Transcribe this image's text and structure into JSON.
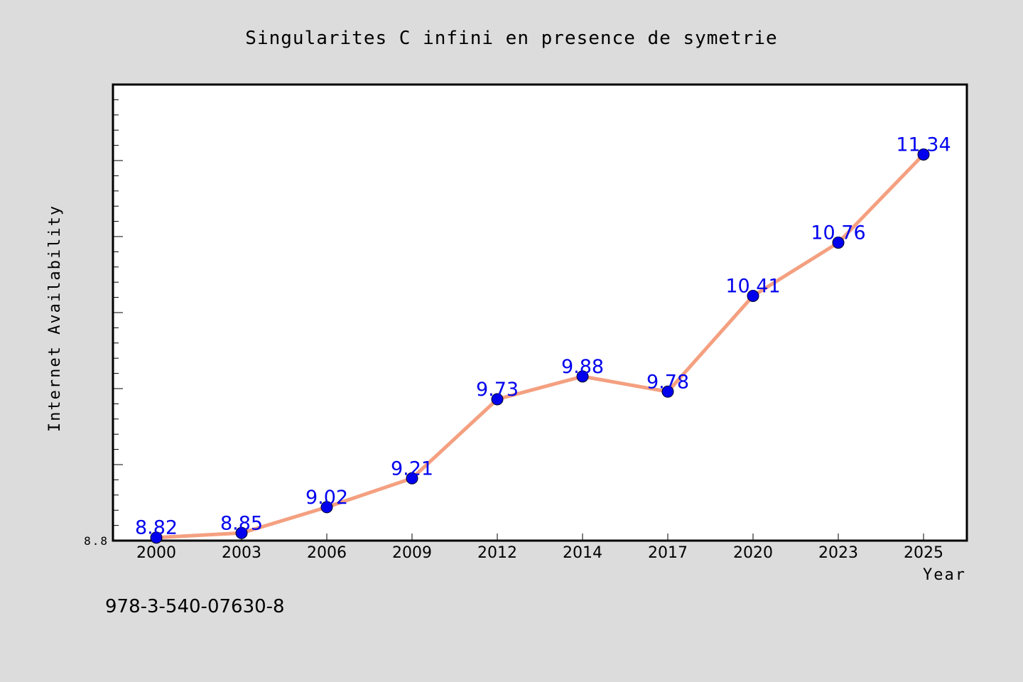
{
  "colors": {
    "background": "#dcdcdc",
    "plot_background": "#ffffff",
    "line": "#f4a080",
    "marker": "#0000ee",
    "data_label": "#0000ee",
    "frame": "#000000"
  },
  "footer": {
    "isbn": "978-3-540-07630-8"
  },
  "chart_data": {
    "type": "line",
    "title": "Singularites C infini en presence de symetrie",
    "xlabel": "Year",
    "ylabel": "Internet Availability",
    "categories": [
      "2000",
      "2003",
      "2006",
      "2009",
      "2012",
      "2014",
      "2017",
      "2020",
      "2023",
      "2025"
    ],
    "series": [
      {
        "values": [
          8.82,
          8.85,
          9.02,
          9.21,
          9.73,
          9.88,
          9.78,
          10.41,
          10.76,
          11.34
        ]
      }
    ],
    "data_labels": [
      "8.82",
      "8.85",
      "9.02",
      "9.21",
      "9.73",
      "9.88",
      "9.78",
      "10.41",
      "10.76",
      "11.34"
    ],
    "y_tick_labels": [
      "8.8"
    ],
    "ylim": [
      8.8,
      11.8
    ],
    "grid": false,
    "legend": "none"
  }
}
